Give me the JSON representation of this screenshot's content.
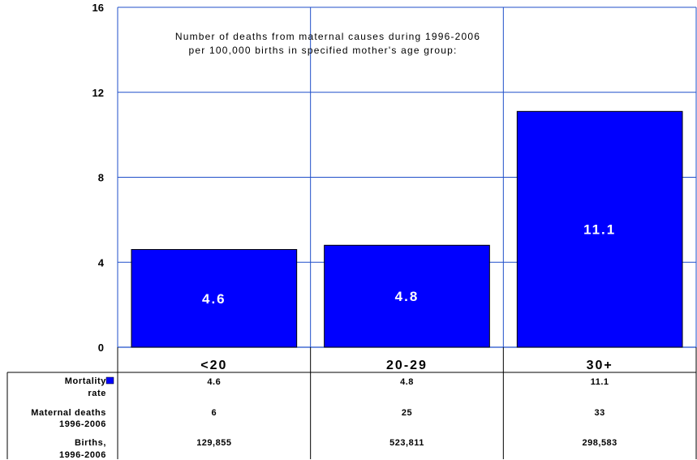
{
  "chart_data": {
    "type": "bar",
    "categories": [
      "<20",
      "20-29",
      "30+"
    ],
    "values": [
      4.6,
      4.8,
      11.1
    ],
    "value_labels": [
      "4.6",
      "4.8",
      "11.1"
    ],
    "ylim": [
      0,
      16
    ],
    "yticks": [
      "0",
      "4",
      "8",
      "12",
      "16"
    ],
    "ytick_values": [
      0,
      4,
      8,
      12,
      16
    ],
    "annotation_lines": [
      "Number of deaths from maternal causes during 1996-2006",
      "per 100,000 births in specified mother's age group:"
    ],
    "grid": true,
    "bar_color": "#0000ff",
    "legend": "inside-table-first-row",
    "table": {
      "rows": [
        {
          "header": [
            "Mortality",
            "rate"
          ],
          "cells": [
            "4.6",
            "4.8",
            "11.1"
          ],
          "has_legend_key": true
        },
        {
          "header": [
            "Maternal deaths",
            "1996-2006"
          ],
          "cells": [
            "6",
            "25",
            "33"
          ],
          "has_legend_key": false
        },
        {
          "header": [
            "Births,",
            "1996-2006"
          ],
          "cells": [
            "129,855",
            "523,811",
            "298,583"
          ],
          "has_legend_key": false
        }
      ]
    }
  }
}
